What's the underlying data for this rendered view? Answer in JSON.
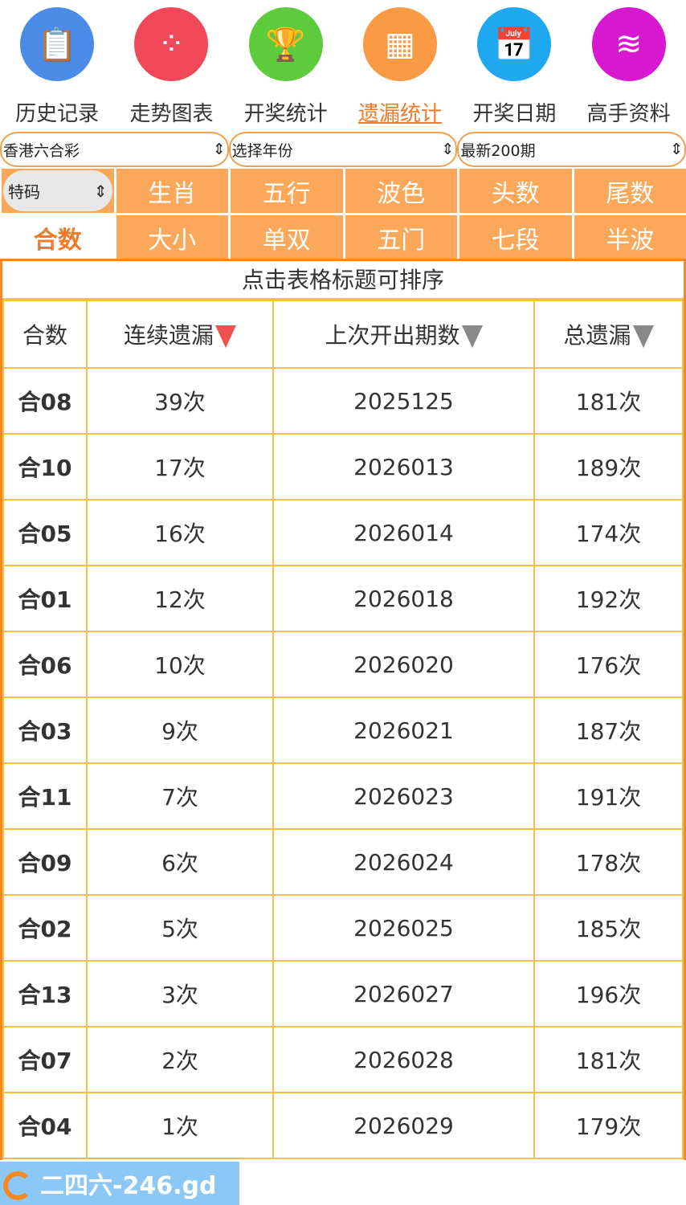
{
  "nav": [
    {
      "label": "历史记录",
      "icon": "clipboard-clock-icon",
      "color": "#4a8be8"
    },
    {
      "label": "走势图表",
      "icon": "chart-nodes-icon",
      "color": "#f04858"
    },
    {
      "label": "开奖统计",
      "icon": "trophy-icon",
      "color": "#5ccc3c"
    },
    {
      "label": "遗漏统计",
      "icon": "table-icon",
      "color": "#fb9a44",
      "active": true
    },
    {
      "label": "开奖日期",
      "icon": "calendar-icon",
      "color": "#1ea8f0"
    },
    {
      "label": "高手资料",
      "icon": "layers-icon",
      "color": "#d818d0"
    }
  ],
  "selects": [
    "香港六合彩",
    "选择年份",
    "最新200期"
  ],
  "type_select": "特码",
  "tabs_row1": [
    "生肖",
    "五行",
    "波色",
    "头数",
    "尾数"
  ],
  "tabs_row2": [
    "合数",
    "大小",
    "单双",
    "五门",
    "七段",
    "半波"
  ],
  "table": {
    "caption": "点击表格标题可排序",
    "headers": [
      "合数",
      "连续遗漏",
      "上次开出期数",
      "总遗漏"
    ],
    "rows": [
      [
        "合08",
        "39次",
        "2025125",
        "181次"
      ],
      [
        "合10",
        "17次",
        "2026013",
        "189次"
      ],
      [
        "合05",
        "16次",
        "2026014",
        "174次"
      ],
      [
        "合01",
        "12次",
        "2026018",
        "192次"
      ],
      [
        "合06",
        "10次",
        "2026020",
        "176次"
      ],
      [
        "合03",
        "9次",
        "2026021",
        "187次"
      ],
      [
        "合11",
        "7次",
        "2026023",
        "191次"
      ],
      [
        "合09",
        "6次",
        "2026024",
        "178次"
      ],
      [
        "合02",
        "5次",
        "2026025",
        "185次"
      ],
      [
        "合13",
        "3次",
        "2026027",
        "196次"
      ],
      [
        "合07",
        "2次",
        "2026028",
        "181次"
      ],
      [
        "合04",
        "1次",
        "2026029",
        "179次"
      ]
    ]
  },
  "watermark": "二四六-246.gd"
}
